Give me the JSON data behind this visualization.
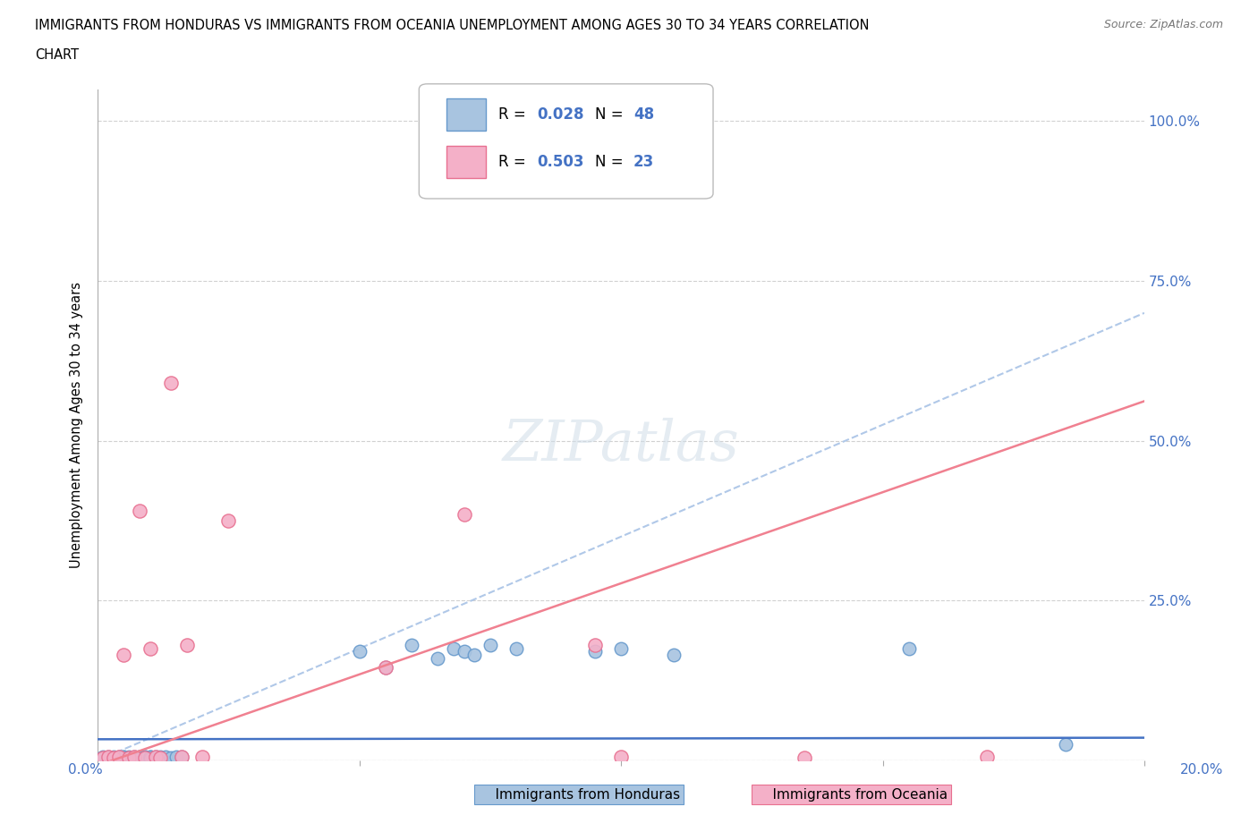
{
  "title_line1": "IMMIGRANTS FROM HONDURAS VS IMMIGRANTS FROM OCEANIA UNEMPLOYMENT AMONG AGES 30 TO 34 YEARS CORRELATION",
  "title_line2": "CHART",
  "source": "Source: ZipAtlas.com",
  "ylabel": "Unemployment Among Ages 30 to 34 years",
  "xlim": [
    0.0,
    0.2
  ],
  "ylim": [
    0.0,
    1.05
  ],
  "honduras_color": "#a8c4e0",
  "honduras_edge": "#6699cc",
  "oceania_color": "#f4b0c8",
  "oceania_edge": "#e87090",
  "trend_honduras_color": "#4472c4",
  "trend_oceania_color": "#f08090",
  "trend_dashed_color": "#b0c8e8",
  "watermark": "ZIPatlas",
  "legend_r_honduras": "0.028",
  "legend_n_honduras": "48",
  "legend_r_oceania": "0.503",
  "legend_n_oceania": "23",
  "background_color": "#ffffff",
  "grid_color": "#cccccc",
  "honduras_x": [
    0.001,
    0.002,
    0.002,
    0.003,
    0.003,
    0.004,
    0.004,
    0.005,
    0.005,
    0.005,
    0.006,
    0.006,
    0.007,
    0.007,
    0.007,
    0.008,
    0.008,
    0.008,
    0.008,
    0.009,
    0.009,
    0.009,
    0.01,
    0.01,
    0.01,
    0.01,
    0.011,
    0.011,
    0.012,
    0.012,
    0.013,
    0.014,
    0.015,
    0.016,
    0.05,
    0.055,
    0.06,
    0.065,
    0.068,
    0.07,
    0.072,
    0.075,
    0.08,
    0.095,
    0.1,
    0.11,
    0.155,
    0.185
  ],
  "honduras_y": [
    0.005,
    0.003,
    0.006,
    0.004,
    0.005,
    0.003,
    0.006,
    0.004,
    0.005,
    0.006,
    0.003,
    0.005,
    0.004,
    0.006,
    0.003,
    0.004,
    0.005,
    0.006,
    0.003,
    0.004,
    0.005,
    0.006,
    0.004,
    0.005,
    0.006,
    0.003,
    0.004,
    0.005,
    0.004,
    0.006,
    0.005,
    0.004,
    0.006,
    0.005,
    0.17,
    0.145,
    0.18,
    0.16,
    0.175,
    0.17,
    0.165,
    0.18,
    0.175,
    0.17,
    0.175,
    0.165,
    0.175,
    0.025
  ],
  "oceania_x": [
    0.001,
    0.002,
    0.003,
    0.004,
    0.005,
    0.006,
    0.007,
    0.008,
    0.009,
    0.01,
    0.011,
    0.012,
    0.014,
    0.016,
    0.017,
    0.02,
    0.025,
    0.055,
    0.07,
    0.095,
    0.1,
    0.135,
    0.17
  ],
  "oceania_y": [
    0.004,
    0.005,
    0.004,
    0.005,
    0.165,
    0.004,
    0.005,
    0.39,
    0.004,
    0.175,
    0.005,
    0.004,
    0.59,
    0.005,
    0.18,
    0.005,
    0.375,
    0.145,
    0.385,
    0.18,
    0.005,
    0.004,
    0.005
  ],
  "trend_honduras_slope": 0.012,
  "trend_honduras_intercept": 0.033,
  "trend_oceania_slope": 2.85,
  "trend_oceania_intercept": -0.008,
  "trend_dashed_slope": 3.5,
  "trend_dashed_intercept": 0.0
}
